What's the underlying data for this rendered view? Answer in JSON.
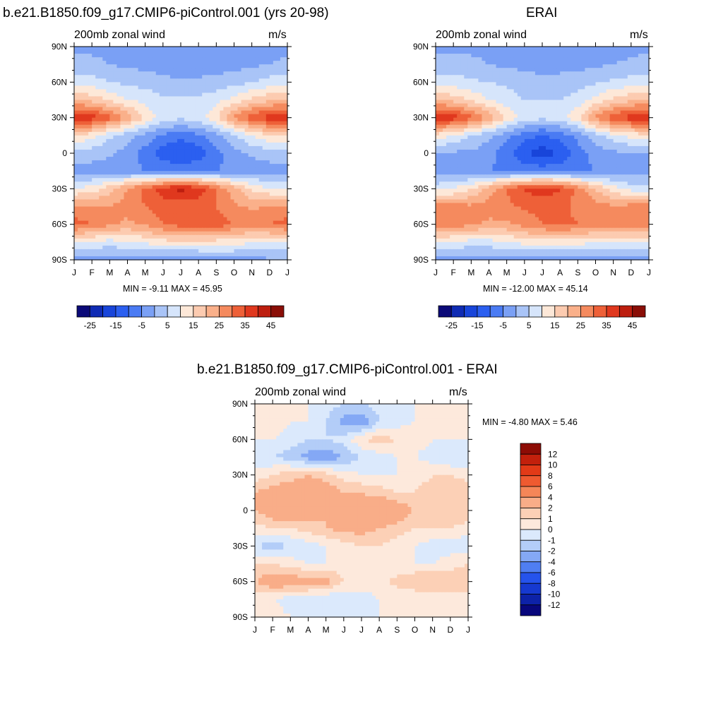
{
  "panels": [
    {
      "title": "b.e21.B1850.f09_g17.CMIP6-piControl.001 (yrs 20-98)",
      "left_label": "200mb zonal wind",
      "right_label": "m/s",
      "minmax": "MIN =  -9.11 MAX =  45.95"
    },
    {
      "title": "ERAI",
      "left_label": "200mb zonal wind",
      "right_label": "m/s",
      "minmax": "MIN =  -12.00 MAX =  45.14"
    },
    {
      "title": "b.e21.B1850.f09_g17.CMIP6-piControl.001 - ERAI",
      "left_label": "200mb zonal wind",
      "right_label": "m/s",
      "minmax": "MIN =  -4.80 MAX =   5.46"
    }
  ],
  "chart_data": [
    {
      "type": "heatmap",
      "title": "b.e21.B1850.f09_g17.CMIP6-piControl.001 (yrs 20-98)",
      "x_ticks": [
        "J",
        "F",
        "M",
        "A",
        "M",
        "J",
        "J",
        "A",
        "S",
        "O",
        "N",
        "D",
        "J"
      ],
      "y_ticks": [
        "90N",
        "60N",
        "30N",
        "0",
        "30S",
        "60S",
        "90S"
      ],
      "y_range": [
        -90,
        90
      ],
      "colorbar": {
        "labels": [
          "-25",
          "-15",
          "-5",
          "5",
          "15",
          "25",
          "35",
          "45"
        ],
        "levels": [
          -30,
          -25,
          -20,
          -15,
          -10,
          -5,
          0,
          5,
          10,
          15,
          20,
          25,
          30,
          35,
          40,
          45
        ],
        "colors": [
          "#0b0a78",
          "#0f2bb4",
          "#1845da",
          "#2b5ff0",
          "#4a7bf3",
          "#7aa0f5",
          "#a9c4f7",
          "#d6e5fb",
          "#fde8d8",
          "#fccbb0",
          "#fab08a",
          "#f58a5e",
          "#ee6038",
          "#e0381e",
          "#bd1e0f",
          "#8a0e07"
        ]
      },
      "values": [
        [
          -1,
          -1,
          -1,
          -1,
          -2,
          -4,
          -5,
          -5,
          -5,
          -4,
          -3,
          -2,
          -1
        ],
        [
          1,
          1,
          0,
          -1,
          -2,
          -3,
          -4,
          -3,
          -3,
          -2,
          -1,
          0,
          1
        ],
        [
          8,
          7,
          5,
          4,
          3,
          2,
          1,
          1,
          2,
          3,
          5,
          7,
          8
        ],
        [
          20,
          18,
          14,
          10,
          8,
          6,
          6,
          6,
          8,
          12,
          16,
          19,
          20
        ],
        [
          40,
          38,
          32,
          24,
          14,
          8,
          6,
          8,
          14,
          26,
          34,
          38,
          40
        ],
        [
          15,
          12,
          6,
          2,
          -2,
          -6,
          -8,
          -6,
          -2,
          4,
          10,
          14,
          15
        ],
        [
          2,
          2,
          1,
          -2,
          -7,
          -13,
          -16,
          -13,
          -7,
          -2,
          1,
          2,
          2
        ],
        [
          -2,
          -2,
          -3,
          -4,
          -5,
          -6,
          -6,
          -6,
          -5,
          -4,
          -3,
          -2,
          -2
        ],
        [
          10,
          12,
          18,
          25,
          32,
          38,
          42,
          38,
          30,
          22,
          14,
          10,
          10
        ],
        [
          26,
          25,
          25,
          27,
          30,
          32,
          32,
          33,
          30,
          26,
          24,
          26,
          26
        ],
        [
          32,
          30,
          26,
          24,
          26,
          30,
          32,
          34,
          33,
          30,
          28,
          30,
          32
        ],
        [
          10,
          9,
          8,
          9,
          11,
          13,
          14,
          14,
          13,
          12,
          11,
          10,
          10
        ],
        [
          -1,
          -2,
          -3,
          -3,
          -4,
          -4,
          -5,
          -4,
          -3,
          -2,
          -2,
          -1,
          -1
        ]
      ]
    },
    {
      "type": "heatmap",
      "title": "ERAI",
      "x_ticks": [
        "J",
        "F",
        "M",
        "A",
        "M",
        "J",
        "J",
        "A",
        "S",
        "O",
        "N",
        "D",
        "J"
      ],
      "y_ticks": [
        "90N",
        "60N",
        "30N",
        "0",
        "30S",
        "60S",
        "90S"
      ],
      "y_range": [
        -90,
        90
      ],
      "colorbar": {
        "labels": [
          "-25",
          "-15",
          "-5",
          "5",
          "15",
          "25",
          "35",
          "45"
        ],
        "levels": [
          -30,
          -25,
          -20,
          -15,
          -10,
          -5,
          0,
          5,
          10,
          15,
          20,
          25,
          30,
          35,
          40,
          45
        ],
        "colors": [
          "#0b0a78",
          "#0f2bb4",
          "#1845da",
          "#2b5ff0",
          "#4a7bf3",
          "#7aa0f5",
          "#a9c4f7",
          "#d6e5fb",
          "#fde8d8",
          "#fccbb0",
          "#fab08a",
          "#f58a5e",
          "#ee6038",
          "#e0381e",
          "#bd1e0f",
          "#8a0e07"
        ]
      },
      "values": [
        [
          -1,
          -1,
          -1,
          -1,
          -2,
          -3,
          -4,
          -4,
          -4,
          -3,
          -2,
          -2,
          -1
        ],
        [
          2,
          2,
          1,
          0,
          -1,
          -2,
          -3,
          -2,
          -2,
          -1,
          0,
          1,
          2
        ],
        [
          8,
          7,
          6,
          5,
          4,
          3,
          2,
          2,
          3,
          4,
          6,
          7,
          8
        ],
        [
          20,
          18,
          14,
          10,
          7,
          5,
          5,
          5,
          7,
          12,
          16,
          19,
          20
        ],
        [
          40,
          38,
          32,
          24,
          14,
          8,
          6,
          8,
          14,
          26,
          34,
          38,
          40
        ],
        [
          13,
          10,
          5,
          1,
          -3,
          -8,
          -10,
          -8,
          -3,
          3,
          8,
          12,
          13
        ],
        [
          -1,
          -1,
          -1,
          -3,
          -8,
          -14,
          -18,
          -14,
          -8,
          -3,
          -1,
          -1,
          -1
        ],
        [
          -3,
          -3,
          -4,
          -5,
          -6,
          -7,
          -7,
          -7,
          -6,
          -5,
          -4,
          -3,
          -3
        ],
        [
          8,
          10,
          15,
          22,
          30,
          36,
          38,
          36,
          28,
          20,
          12,
          8,
          8
        ],
        [
          28,
          27,
          26,
          27,
          29,
          31,
          31,
          31,
          29,
          27,
          26,
          27,
          28
        ],
        [
          30,
          28,
          26,
          24,
          24,
          27,
          30,
          31,
          30,
          28,
          27,
          28,
          30
        ],
        [
          10,
          9,
          8,
          8,
          10,
          12,
          13,
          13,
          12,
          11,
          10,
          10,
          10
        ],
        [
          -2,
          -2,
          -3,
          -3,
          -4,
          -5,
          -5,
          -5,
          -4,
          -3,
          -2,
          -2,
          -2
        ]
      ]
    },
    {
      "type": "heatmap",
      "title": "b.e21.B1850.f09_g17.CMIP6-piControl.001 - ERAI",
      "x_ticks": [
        "J",
        "F",
        "M",
        "A",
        "M",
        "J",
        "J",
        "A",
        "S",
        "O",
        "N",
        "D",
        "J"
      ],
      "y_ticks": [
        "90N",
        "60N",
        "30N",
        "0",
        "30S",
        "60S",
        "90S"
      ],
      "y_range": [
        -90,
        90
      ],
      "colorbar": {
        "labels": [
          "12",
          "10",
          "8",
          "6",
          "4",
          "2",
          "1",
          "0",
          "-1",
          "-2",
          "-4",
          "-6",
          "-8",
          "-10",
          "-12"
        ],
        "levels": [
          -12,
          -10,
          -8,
          -6,
          -4,
          -2,
          -1,
          0,
          1,
          2,
          4,
          6,
          8,
          10,
          12
        ],
        "colors": [
          "#08077c",
          "#0d22a8",
          "#1639d0",
          "#2553ec",
          "#4f7ef2",
          "#84a8f5",
          "#b3cdf8",
          "#dbe9fc",
          "#fde9dc",
          "#fcd0b6",
          "#f9ad88",
          "#f58658",
          "#ef5a30",
          "#e23a17",
          "#c2200c",
          "#8d0c05"
        ]
      },
      "values": [
        [
          1,
          1,
          0.5,
          0,
          -0.5,
          -1,
          -1,
          -0.5,
          -0.5,
          0,
          0,
          0,
          1
        ],
        [
          0.5,
          0.5,
          0,
          0,
          -1,
          -2.5,
          -3,
          -1,
          -0.5,
          0,
          0,
          0,
          0.5
        ],
        [
          0,
          0,
          -0.5,
          -1,
          -1,
          -0.5,
          1,
          1.5,
          1,
          0.5,
          0,
          0,
          0
        ],
        [
          -1,
          -1,
          -1.5,
          -2.5,
          -3,
          -2,
          -1,
          -0.5,
          0,
          0,
          -0.5,
          -1,
          -1
        ],
        [
          0.5,
          1,
          1.5,
          2,
          1.5,
          0.5,
          0,
          0,
          0,
          0.5,
          1,
          1,
          0.5
        ],
        [
          2,
          2.5,
          3,
          3.5,
          3,
          2,
          2,
          1.5,
          1,
          1,
          1.5,
          2,
          2
        ],
        [
          2,
          3,
          3,
          2.5,
          2,
          2.5,
          3,
          4,
          3,
          2,
          1,
          1.5,
          2
        ],
        [
          0.5,
          1,
          1,
          1.5,
          2,
          2.5,
          2.5,
          2,
          1.5,
          1,
          1,
          1,
          0.5
        ],
        [
          -1,
          -1.5,
          -1,
          -0.5,
          0,
          0.5,
          1,
          1,
          0.5,
          0,
          -0.5,
          -0.5,
          -1
        ],
        [
          1,
          1,
          0.5,
          0,
          0,
          0.5,
          1,
          0.5,
          0,
          0,
          0,
          0.5,
          1
        ],
        [
          2,
          3,
          3,
          2.5,
          2.5,
          1,
          0.5,
          0.5,
          1.5,
          2,
          2,
          2,
          2
        ],
        [
          0,
          0,
          -0.5,
          -0.5,
          -1,
          -1,
          -0.5,
          0,
          0,
          0,
          0,
          0,
          0
        ],
        [
          0.5,
          0.5,
          0,
          0,
          -0.5,
          -0.5,
          0,
          0,
          0,
          0,
          0.5,
          0.5,
          0.5
        ]
      ]
    }
  ]
}
